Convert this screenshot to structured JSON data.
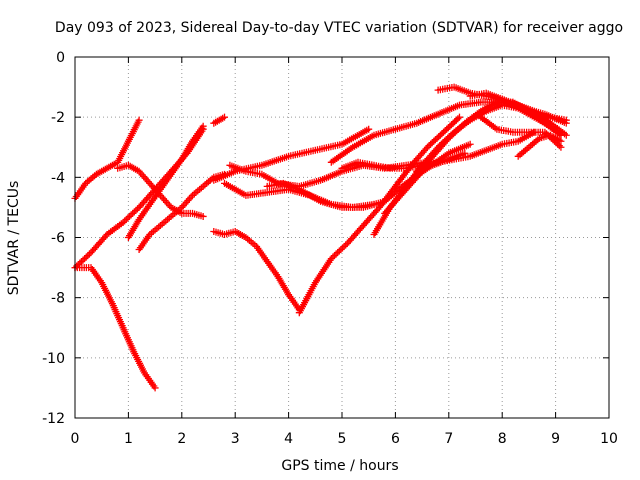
{
  "chart_data": {
    "type": "scatter",
    "title": "Day 093 of 2023, Sidereal Day-to-day VTEC variation (SDTVAR) for receiver aggo",
    "xlabel": "GPS time / hours",
    "ylabel": "SDTVAR / TECUs",
    "xlim": [
      0,
      10
    ],
    "ylim": [
      -12,
      0
    ],
    "xticks": [
      0,
      1,
      2,
      3,
      4,
      5,
      6,
      7,
      8,
      9,
      10
    ],
    "yticks": [
      0,
      -2,
      -4,
      -6,
      -8,
      -10,
      -12
    ],
    "grid": true,
    "marker": "plus",
    "color": "#ff0000",
    "series": [
      {
        "x": [
          0.0,
          0.2,
          0.4,
          0.6,
          0.8,
          1.0,
          1.2
        ],
        "y": [
          -4.7,
          -4.2,
          -3.9,
          -3.7,
          -3.5,
          -2.8,
          -2.1
        ]
      },
      {
        "x": [
          0.0,
          0.3,
          0.5,
          0.7,
          0.9,
          1.1,
          1.3,
          1.5
        ],
        "y": [
          -7.0,
          -7.0,
          -7.5,
          -8.2,
          -9.0,
          -9.8,
          -10.5,
          -11.0
        ]
      },
      {
        "x": [
          0.0,
          0.3,
          0.6,
          0.9,
          1.2,
          1.5,
          1.8,
          2.1,
          2.4
        ],
        "y": [
          -7.0,
          -6.5,
          -5.9,
          -5.5,
          -5.0,
          -4.4,
          -3.8,
          -3.2,
          -2.4
        ]
      },
      {
        "x": [
          0.8,
          1.0,
          1.2,
          1.4,
          1.6,
          1.8,
          2.0,
          2.2,
          2.4
        ],
        "y": [
          -3.7,
          -3.6,
          -3.8,
          -4.2,
          -4.6,
          -5.0,
          -5.2,
          -5.2,
          -5.3
        ]
      },
      {
        "x": [
          1.2,
          1.4,
          1.6,
          1.8,
          2.0,
          2.2,
          2.4,
          2.6,
          2.8
        ],
        "y": [
          -6.4,
          -5.9,
          -5.6,
          -5.3,
          -5.0,
          -4.6,
          -4.3,
          -4.0,
          -3.9
        ]
      },
      {
        "x": [
          1.0,
          1.2,
          1.4,
          1.6,
          1.8,
          2.0,
          2.2,
          2.4
        ],
        "y": [
          -6.0,
          -5.4,
          -4.9,
          -4.4,
          -3.9,
          -3.4,
          -2.8,
          -2.3
        ]
      },
      {
        "x": [
          2.6,
          2.7,
          2.8
        ],
        "y": [
          -2.2,
          -2.1,
          -2.0
        ]
      },
      {
        "x": [
          2.6,
          2.8,
          3.0,
          3.2,
          3.4,
          3.6,
          3.8,
          4.0,
          4.2
        ],
        "y": [
          -5.8,
          -5.9,
          -5.8,
          -6.0,
          -6.3,
          -6.8,
          -7.3,
          -7.9,
          -8.4
        ]
      },
      {
        "x": [
          2.6,
          3.0,
          3.5,
          4.0,
          4.5,
          5.0,
          5.5
        ],
        "y": [
          -4.1,
          -3.8,
          -3.6,
          -3.3,
          -3.1,
          -2.9,
          -2.4
        ]
      },
      {
        "x": [
          2.8,
          3.2,
          3.6,
          4.0,
          4.4,
          4.8,
          5.2,
          5.6
        ],
        "y": [
          -4.2,
          -4.6,
          -4.5,
          -4.4,
          -4.6,
          -4.9,
          -5.0,
          -4.9
        ]
      },
      {
        "x": [
          2.9,
          3.2,
          3.5,
          3.8,
          4.2,
          4.6,
          5.0,
          5.4,
          5.8,
          6.2,
          6.6
        ],
        "y": [
          -3.6,
          -3.8,
          -3.9,
          -4.2,
          -4.3,
          -4.1,
          -3.8,
          -3.6,
          -3.7,
          -3.6,
          -3.5
        ]
      },
      {
        "x": [
          4.2,
          4.5,
          4.8,
          5.1,
          5.4,
          5.7,
          6.0,
          6.3,
          6.6,
          6.9,
          7.2
        ],
        "y": [
          -8.5,
          -7.5,
          -6.7,
          -6.2,
          -5.6,
          -5.0,
          -4.3,
          -3.6,
          -3.0,
          -2.5,
          -2.0
        ]
      },
      {
        "x": [
          3.6,
          3.9,
          4.2,
          4.6,
          5.0,
          5.4,
          5.8,
          6.2,
          6.6,
          7.0,
          7.4
        ],
        "y": [
          -4.3,
          -4.2,
          -4.4,
          -4.8,
          -5.0,
          -5.0,
          -4.8,
          -4.2,
          -3.7,
          -3.2,
          -2.9
        ]
      },
      {
        "x": [
          5.0,
          5.3,
          5.6,
          5.9,
          6.2,
          6.5,
          6.8,
          7.1,
          7.4,
          7.7,
          8.0,
          8.3,
          8.6
        ],
        "y": [
          -3.7,
          -3.5,
          -3.6,
          -3.7,
          -3.7,
          -3.6,
          -3.5,
          -3.4,
          -3.3,
          -3.1,
          -2.9,
          -2.8,
          -2.5
        ]
      },
      {
        "x": [
          5.6,
          5.9,
          6.2,
          6.5,
          6.8,
          7.1,
          7.4,
          7.7,
          8.0,
          8.3,
          8.6,
          8.9,
          9.1
        ],
        "y": [
          -5.9,
          -5.0,
          -4.3,
          -3.6,
          -3.0,
          -2.5,
          -2.1,
          -1.8,
          -1.6,
          -1.7,
          -2.0,
          -2.3,
          -2.6
        ]
      },
      {
        "x": [
          5.8,
          6.1,
          6.4,
          6.7,
          7.0,
          7.3,
          7.6,
          7.9,
          8.2,
          8.5,
          8.8,
          9.1
        ],
        "y": [
          -5.2,
          -4.6,
          -4.0,
          -3.3,
          -2.7,
          -2.2,
          -1.8,
          -1.5,
          -1.5,
          -1.8,
          -2.2,
          -2.6
        ]
      },
      {
        "x": [
          4.8,
          5.2,
          5.6,
          6.0,
          6.4,
          6.8,
          7.2,
          7.6,
          8.0,
          8.4,
          8.8,
          9.2
        ],
        "y": [
          -3.5,
          -3.0,
          -2.6,
          -2.4,
          -2.2,
          -1.9,
          -1.6,
          -1.5,
          -1.5,
          -1.7,
          -1.9,
          -2.2
        ]
      },
      {
        "x": [
          6.8,
          7.1,
          7.4,
          7.7,
          8.0,
          8.3,
          8.6,
          8.9,
          9.2
        ],
        "y": [
          -1.1,
          -1.0,
          -1.2,
          -1.3,
          -1.4,
          -1.6,
          -1.8,
          -2.2,
          -2.6
        ]
      },
      {
        "x": [
          7.4,
          7.7,
          8.0,
          8.3,
          8.6,
          8.9,
          9.2
        ],
        "y": [
          -1.3,
          -1.2,
          -1.4,
          -1.7,
          -1.9,
          -2.0,
          -2.1
        ]
      },
      {
        "x": [
          8.3,
          8.5,
          8.7,
          8.9,
          9.1
        ],
        "y": [
          -3.3,
          -3.0,
          -2.7,
          -2.6,
          -2.8
        ]
      },
      {
        "x": [
          7.6,
          7.9,
          8.2,
          8.5,
          8.8,
          9.1
        ],
        "y": [
          -2.0,
          -2.4,
          -2.5,
          -2.5,
          -2.5,
          -3.0
        ]
      },
      {
        "x": [
          6.4,
          6.7,
          7.0,
          7.3
        ],
        "y": [
          -3.8,
          -3.6,
          -3.4,
          -3.2
        ]
      }
    ]
  }
}
